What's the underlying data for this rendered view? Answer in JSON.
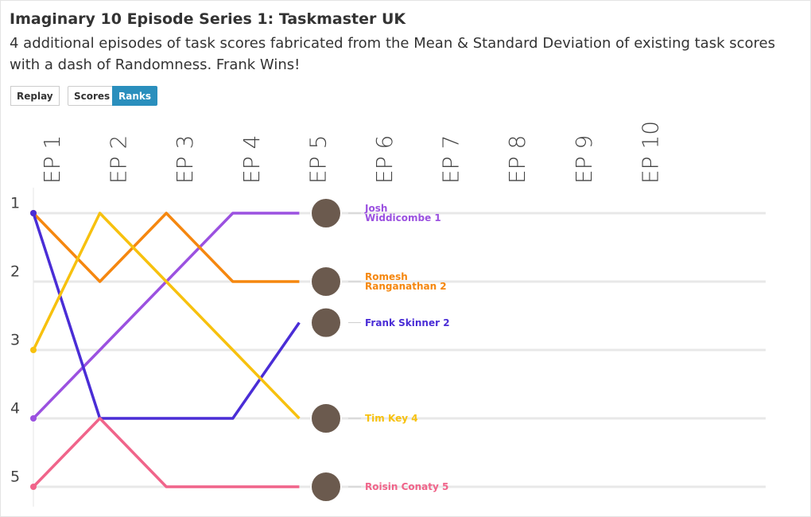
{
  "title": "Imaginary 10 Episode Series 1: Taskmaster UK",
  "subtitle": "4 additional episodes of task scores fabricated from the Mean & Standard Deviation of existing task scores with a dash of Randomness. Frank Wins!",
  "controls": {
    "replay": "Replay",
    "modes": [
      "Scores",
      "Ranks"
    ],
    "active_mode": 1
  },
  "chart_data": {
    "type": "line",
    "categories": [
      "EP 1",
      "EP 2",
      "EP 3",
      "EP 4",
      "EP 5",
      "EP 6",
      "EP 7",
      "EP 8",
      "EP 9",
      "EP 10"
    ],
    "ylim": [
      1,
      5
    ],
    "yticks": [
      1,
      2,
      3,
      4,
      5
    ],
    "y_inverted": true,
    "grid": true,
    "series": [
      {
        "name": "Josh Widdicombe 1",
        "color": "#9b51e0",
        "values": [
          4,
          3,
          2,
          1,
          1,
          null,
          null,
          null,
          null,
          null
        ]
      },
      {
        "name": "Romesh Ranganathan 2",
        "color": "#f5870f",
        "values": [
          1,
          2,
          1,
          2,
          2,
          null,
          null,
          null,
          null,
          null
        ]
      },
      {
        "name": "Frank Skinner 2",
        "color": "#4a2dd6",
        "values": [
          1,
          4,
          4,
          4,
          2.6,
          null,
          null,
          null,
          null,
          null
        ]
      },
      {
        "name": "Tim Key 4",
        "color": "#f7c10e",
        "values": [
          3,
          1,
          2,
          3,
          4,
          null,
          null,
          null,
          null,
          null
        ]
      },
      {
        "name": "Roisin Conaty 5",
        "color": "#f0648a",
        "values": [
          5,
          4,
          5,
          5,
          5,
          null,
          null,
          null,
          null,
          null
        ]
      }
    ]
  }
}
